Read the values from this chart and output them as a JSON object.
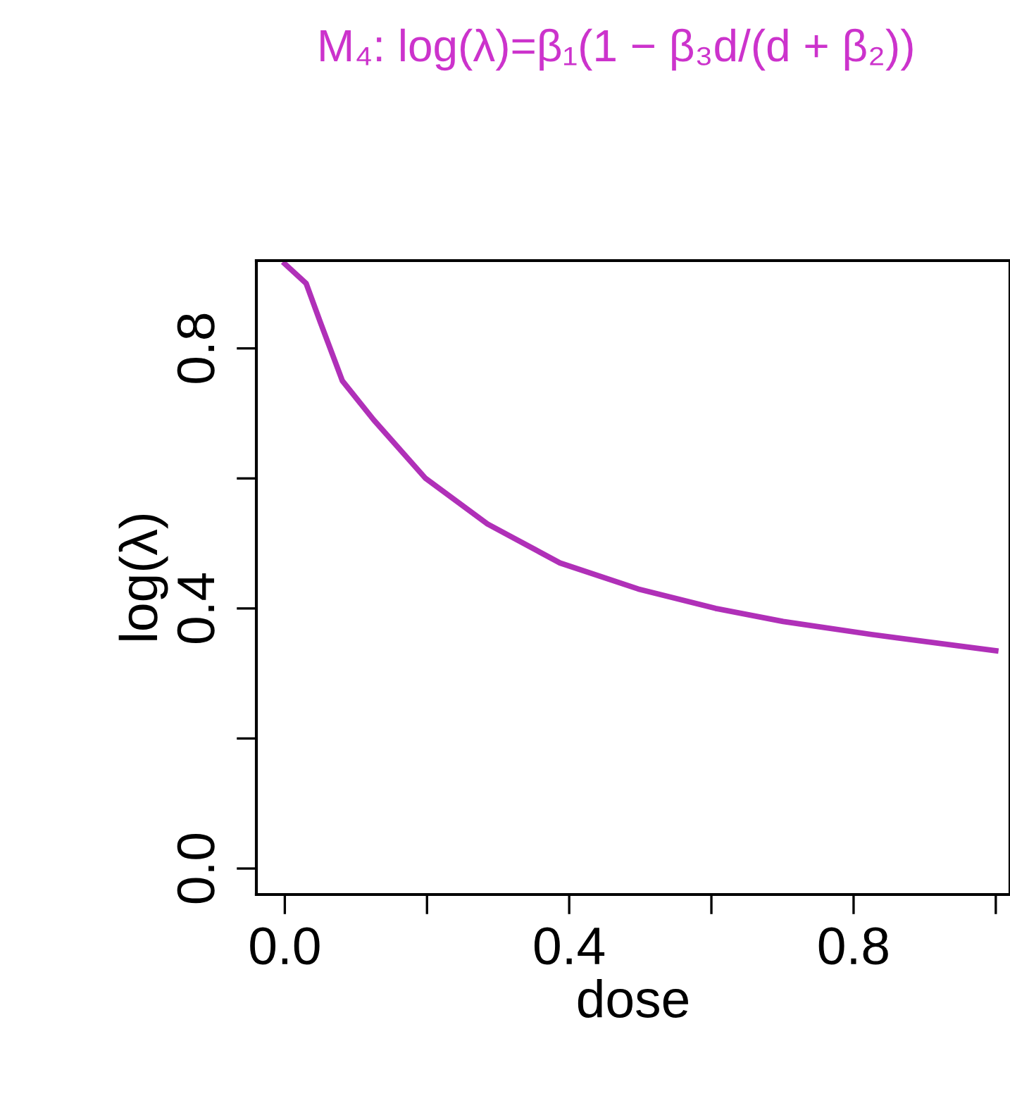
{
  "chart_data": {
    "type": "line",
    "title": "M₄: log(λ)=β₁(1 − β₃d/(d + β₂))",
    "xlabel": "dose",
    "ylabel": "log(λ)",
    "series": [
      {
        "color": "#b030b8",
        "x": [
          0.0,
          0.03,
          0.05,
          0.081,
          0.125,
          0.198,
          0.285,
          0.387,
          0.497,
          0.606,
          0.701,
          0.825,
          1.0
        ],
        "values": [
          0.93,
          0.9,
          0.84,
          0.75,
          0.69,
          0.6,
          0.53,
          0.47,
          0.43,
          0.4,
          0.38,
          0.36,
          0.335
        ]
      }
    ],
    "xlim": [
      -0.04,
      1.02
    ],
    "ylim": [
      -0.04,
      0.935
    ],
    "xticks": [
      {
        "value": 0.0,
        "label": "0.0"
      },
      {
        "value": 0.2,
        "label": null
      },
      0.4,
      {
        "value": 0.6,
        "label": null
      },
      0.8,
      {
        "value": 1.0,
        "label": null
      }
    ],
    "yticks": [
      {
        "value": 0.0,
        "label": "0.0"
      },
      {
        "value": 0.2,
        "label": null
      },
      0.4,
      {
        "value": 0.6,
        "label": null
      },
      0.8
    ],
    "grid": false,
    "legend": false,
    "line_style": "solid",
    "marker": "none"
  }
}
